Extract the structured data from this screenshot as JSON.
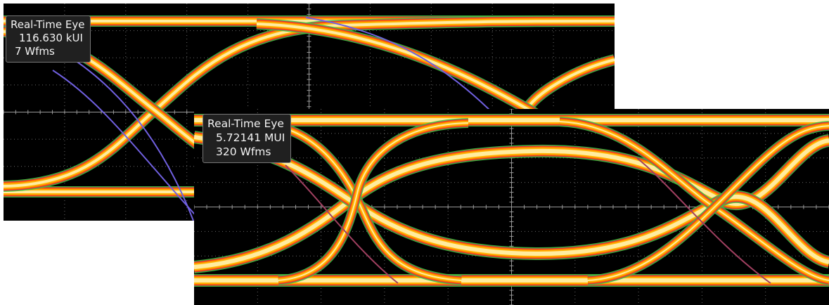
{
  "displays": [
    {
      "title": "Real-Time Eye",
      "ui_count": "116.630 kUI",
      "waveforms": "7 Wfms"
    },
    {
      "title": "Real-Time Eye",
      "ui_count": "5.72141 MUI",
      "waveforms": "320 Wfms"
    }
  ],
  "colors": {
    "background": "#000000",
    "graticule": "#6a6a6a",
    "trace_hot": "#fff3b0",
    "trace_warm": "#ffb000",
    "trace_mid": "#ff6a00",
    "trace_cool": "#e0204a",
    "trace_edge": "#40c040",
    "trace_low": "#7060e0"
  }
}
